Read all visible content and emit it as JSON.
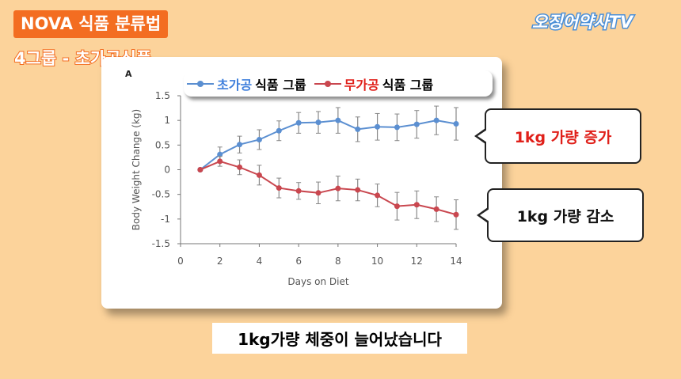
{
  "header": {
    "title": "NOVA 식품 분류법",
    "subtitle": "4그룹 - 초가공식품",
    "channel_logo": "오징어약사TV"
  },
  "callouts": {
    "gain": "1kg 가량 증가",
    "loss": "1kg 가량 감소"
  },
  "caption": "1kg가량 체중이 늘어났습니다",
  "colors": {
    "blue": "#5b8fd1",
    "red": "#c9474f",
    "gain_text": "#e0201a"
  },
  "chart_data": {
    "type": "line",
    "panel_label": "A",
    "xlabel": "Days on Diet",
    "ylabel": "Body Weight Change (kg)",
    "xlim": [
      0,
      14
    ],
    "ylim": [
      -1.5,
      1.5
    ],
    "xticks": [
      0,
      2,
      4,
      6,
      8,
      10,
      12,
      14
    ],
    "yticks": [
      1.5,
      1,
      0.5,
      0,
      -0.5,
      -1,
      -1.5
    ],
    "x": [
      1,
      2,
      3,
      4,
      5,
      6,
      7,
      8,
      9,
      10,
      11,
      12,
      13,
      14
    ],
    "legend": {
      "placement": "top"
    },
    "series": [
      {
        "name": "초가공 식품 그룹",
        "name_highlight": "초가공",
        "name_rest": "식품 그룹",
        "color": "#5b8fd1",
        "values": [
          0,
          0.31,
          0.51,
          0.61,
          0.79,
          0.95,
          0.96,
          1.0,
          0.82,
          0.87,
          0.86,
          0.92,
          1.0,
          0.93
        ],
        "errors": [
          0,
          0.15,
          0.17,
          0.2,
          0.2,
          0.21,
          0.22,
          0.26,
          0.25,
          0.27,
          0.27,
          0.28,
          0.29,
          0.33
        ]
      },
      {
        "name": "무가공 식품 그룹",
        "name_highlight": "무가공",
        "name_rest": "식품 그룹",
        "color": "#c9474f",
        "values": [
          0,
          0.17,
          0.05,
          -0.11,
          -0.37,
          -0.43,
          -0.47,
          -0.38,
          -0.41,
          -0.52,
          -0.74,
          -0.71,
          -0.8,
          -0.91
        ],
        "errors": [
          0,
          0.1,
          0.15,
          0.2,
          0.2,
          0.17,
          0.22,
          0.25,
          0.22,
          0.23,
          0.28,
          0.28,
          0.25,
          0.3
        ]
      }
    ]
  }
}
